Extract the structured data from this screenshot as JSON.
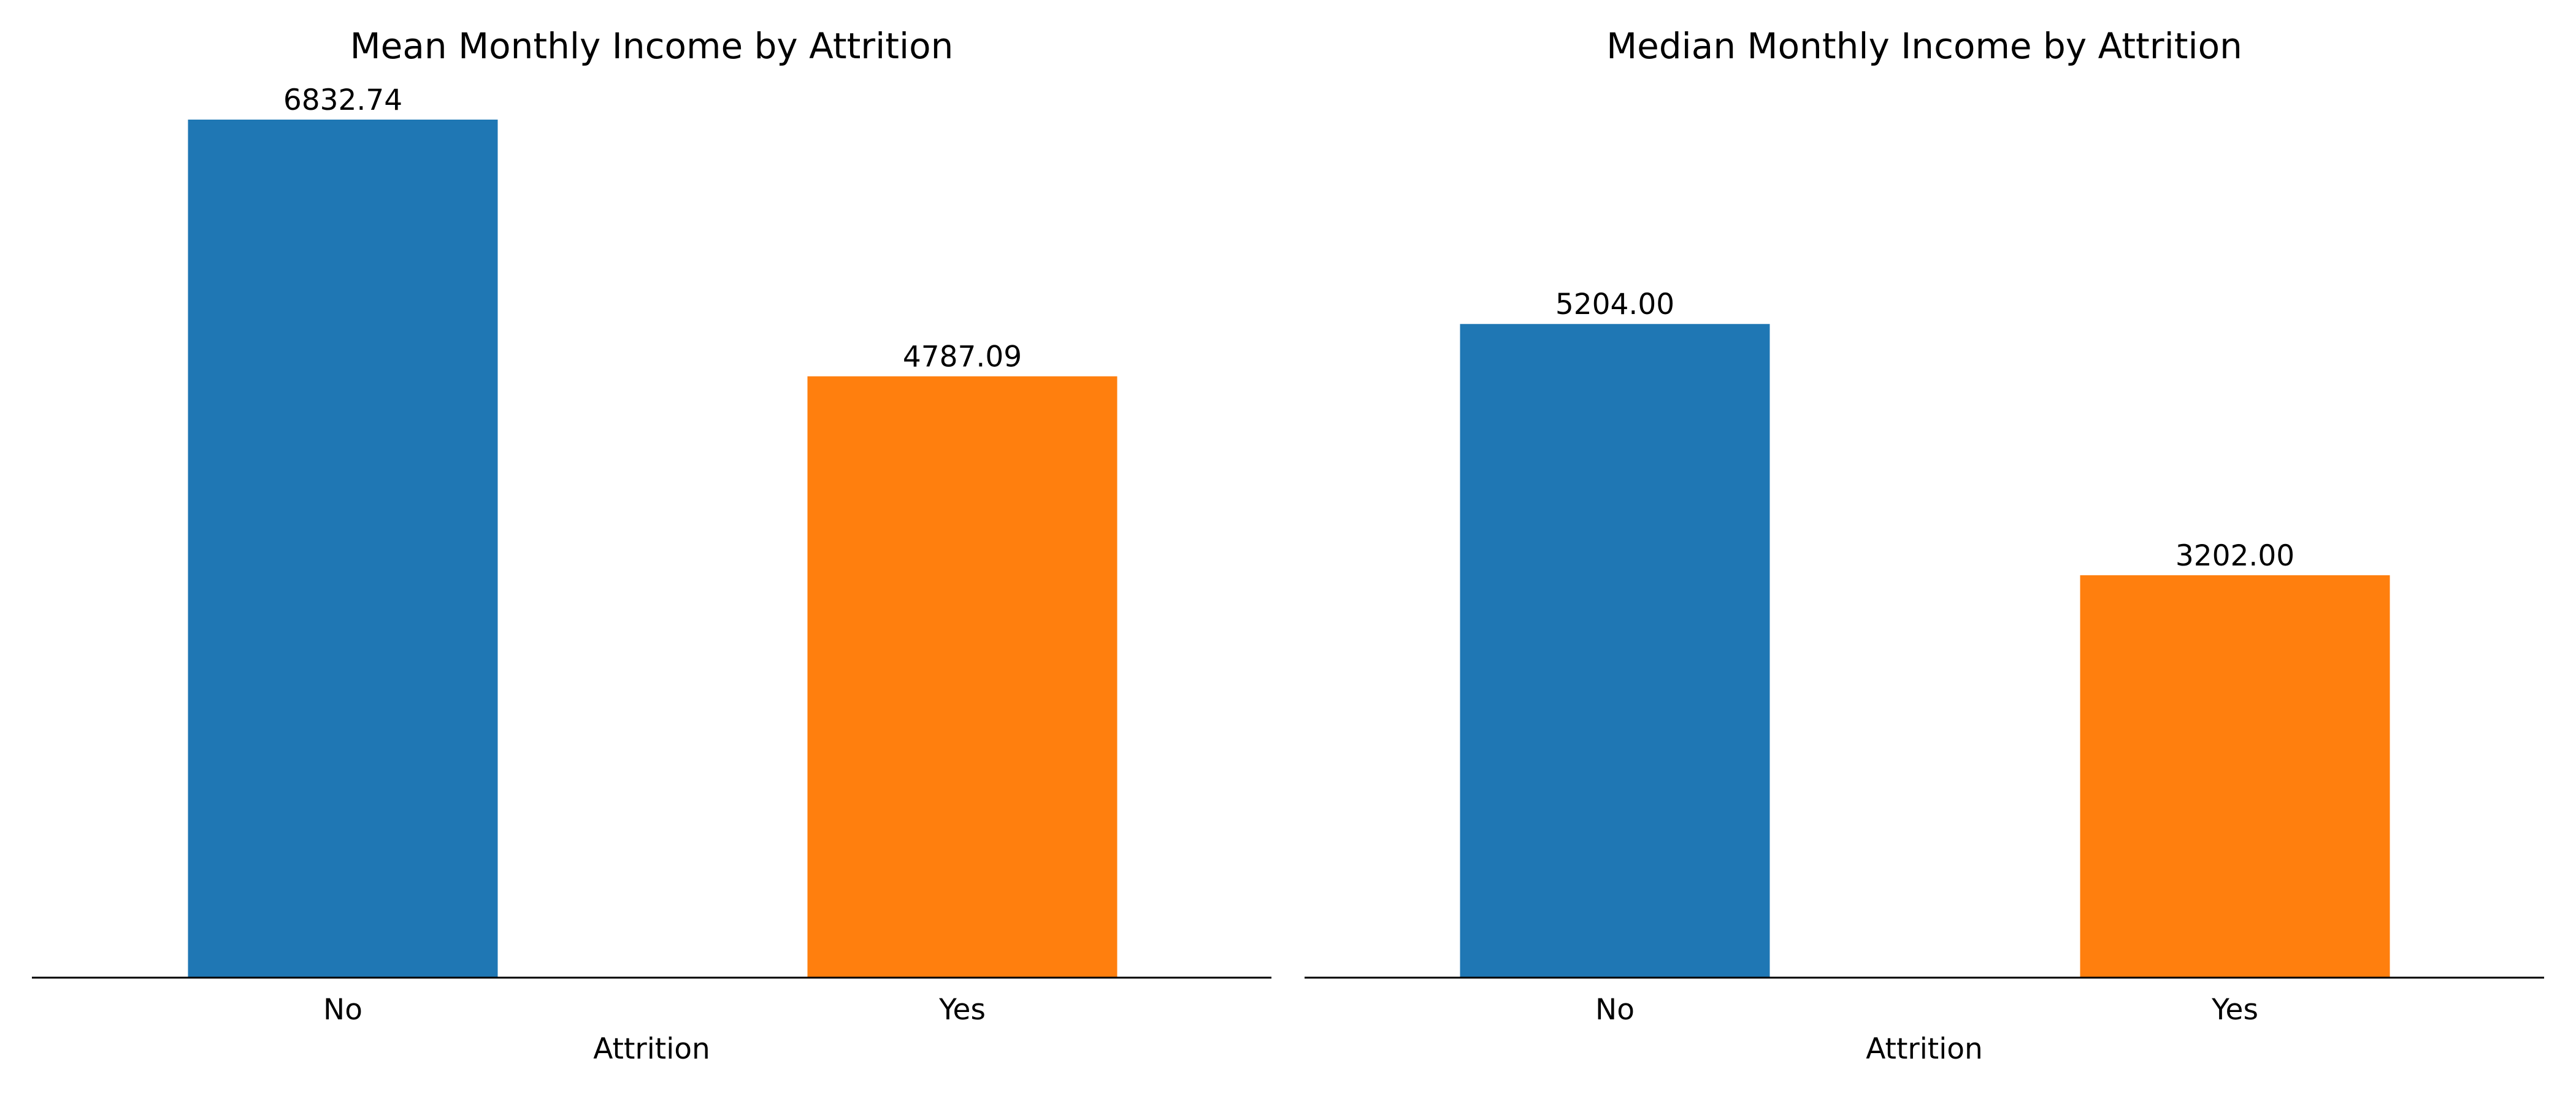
{
  "chart_data": [
    {
      "type": "bar",
      "title": "Mean Monthly Income by Attrition",
      "xlabel": "Attrition",
      "ylabel": "",
      "categories": [
        "No",
        "Yes"
      ],
      "values": [
        6832.74,
        4787.09
      ],
      "value_labels": [
        "6832.74",
        "4787.09"
      ],
      "colors": [
        "#1f77b4",
        "#ff7f0e"
      ],
      "ylim": [
        0,
        6832.74
      ],
      "grid": false,
      "legend": "none"
    },
    {
      "type": "bar",
      "title": "Median Monthly Income by Attrition",
      "xlabel": "Attrition",
      "ylabel": "",
      "categories": [
        "No",
        "Yes"
      ],
      "values": [
        5204.0,
        3202.0
      ],
      "value_labels": [
        "5204.00",
        "3202.00"
      ],
      "colors": [
        "#1f77b4",
        "#ff7f0e"
      ],
      "ylim": [
        0,
        6832.74
      ],
      "grid": false,
      "legend": "none"
    }
  ]
}
